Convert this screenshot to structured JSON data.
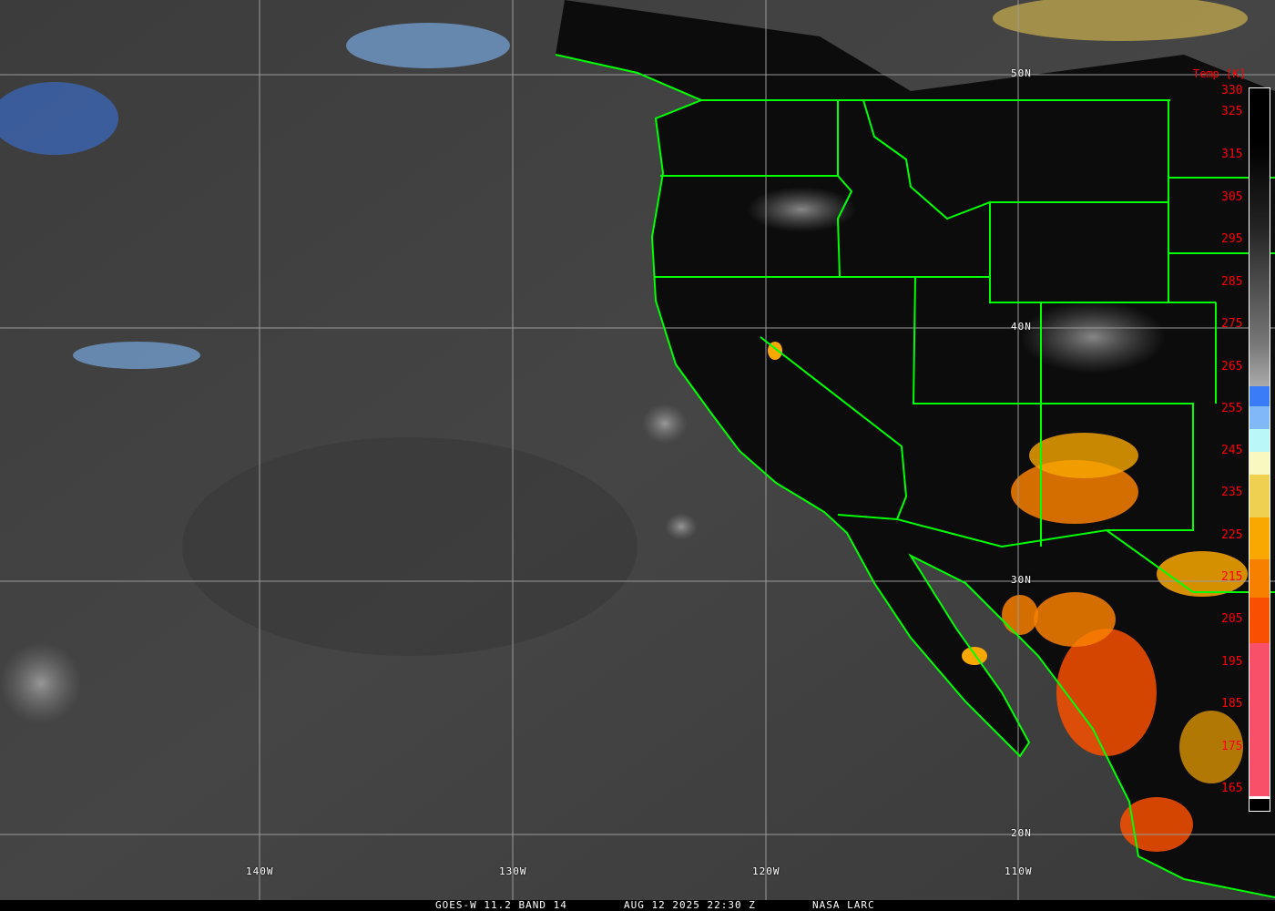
{
  "caption": {
    "satellite": "GOES-W 11.2 BAND 14",
    "datetime": "AUG 12 2025 22:30 Z",
    "source": "NASA LARC"
  },
  "grid": {
    "lon_labels": [
      "140W",
      "130W",
      "120W",
      "110W"
    ],
    "lat_labels": [
      "50N",
      "40N",
      "30N",
      "20N"
    ]
  },
  "colorbar": {
    "title": "Temp [K]",
    "ticks": [
      "330",
      "325",
      "315",
      "305",
      "295",
      "285",
      "275",
      "265",
      "255",
      "245",
      "235",
      "225",
      "215",
      "205",
      "195",
      "185",
      "175",
      "165"
    ],
    "colors": {
      "cold_blue": "#3a7cf8",
      "light_blue": "#80b8f8",
      "pale_cyan": "#b8f8f8",
      "cream": "#f8f8c0",
      "yellow": "#f0d050",
      "orange": "#f8a800",
      "dark_orange": "#f88000",
      "red_orange": "#f85000",
      "pink": "#f85068"
    }
  },
  "colors": {
    "boundaries": "#00ff00",
    "gridlines": "#9a9a9a"
  }
}
